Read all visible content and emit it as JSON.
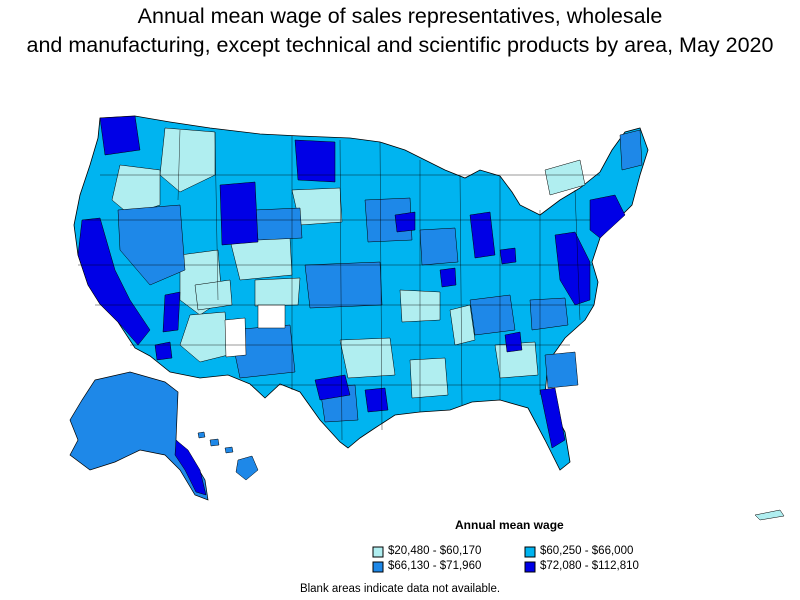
{
  "title_line1": "Annual mean wage of sales representatives, wholesale",
  "title_line2": "and manufacturing, except technical and scientific products by area, May 2020",
  "legend": {
    "title": "Annual mean wage",
    "items": [
      {
        "label": "$20,480 - $60,170",
        "color": "#b0eef0"
      },
      {
        "label": "$60,250 - $66,000",
        "color": "#00b4f0"
      },
      {
        "label": "$66,130 - $71,960",
        "color": "#1e88e8"
      },
      {
        "label": "$72,080 - $112,810",
        "color": "#0000e6"
      }
    ]
  },
  "note": "Blank areas indicate data not available.",
  "colors": {
    "band1": "#b0eef0",
    "band2": "#00b4f0",
    "band3": "#1e88e8",
    "band4": "#0000e6",
    "no_data": "#ffffff",
    "border": "#000000"
  }
}
